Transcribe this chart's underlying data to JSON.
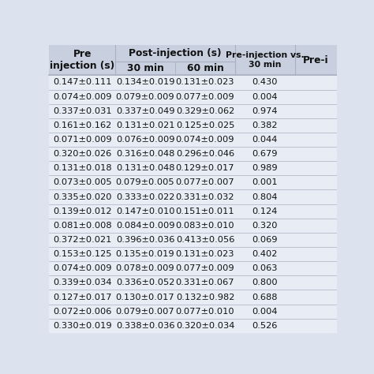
{
  "header_row1_col0": "Pre\ninjection (s)",
  "header_post": "Post-injection (s)",
  "header_30": "30 min",
  "header_60": "60 min",
  "header_pre_vs": "Pre-injection vs.\n30 min",
  "header_pre_i": "Pre-i",
  "col0": [
    "0.147±0.111",
    "0.074±0.009",
    "0.337±0.031",
    "0.161±0.162",
    "0.071±0.009",
    "0.320±0.026",
    "0.131±0.018",
    "0.073±0.005",
    "0.335±0.020",
    "0.139±0.012",
    "0.081±0.008",
    "0.372±0.021",
    "0.153±0.125",
    "0.074±0.009",
    "0.339±0.034",
    "0.127±0.017",
    "0.072±0.006",
    "0.330±0.019"
  ],
  "col1": [
    "0.134±0.019",
    "0.079±0.009",
    "0.337±0.049",
    "0.131±0.021",
    "0.076±0.009",
    "0.316±0.048",
    "0.131±0.048",
    "0.079±0.005",
    "0.333±0.022",
    "0.147±0.010",
    "0.084±0.009",
    "0.396±0.036",
    "0.135±0.019",
    "0.078±0.009",
    "0.336±0.052",
    "0.130±0.017",
    "0.079±0.007",
    "0.338±0.036"
  ],
  "col2": [
    "0.131±0.023",
    "0.077±0.009",
    "0.329±0.062",
    "0.125±0.025",
    "0.074±0.009",
    "0.296±0.046",
    "0.129±0.017",
    "0.077±0.007",
    "0.331±0.032",
    "0.151±0.011",
    "0.083±0.010",
    "0.413±0.056",
    "0.131±0.023",
    "0.077±0.009",
    "0.331±0.067",
    "0.132±0.982",
    "0.077±0.010",
    "0.320±0.034"
  ],
  "col3": [
    "0.430",
    "0.004",
    "0.974",
    "0.382",
    "0.044",
    "0.679",
    "0.989",
    "0.001",
    "0.804",
    "0.124",
    "0.320",
    "0.069",
    "0.402",
    "0.063",
    "0.800",
    "0.688",
    "0.004",
    "0.526"
  ],
  "page_bg": "#dce3ef",
  "header_bg": "#c8d0e0",
  "data_bg": "#e8ecf4",
  "separator_color": "#aab0c0",
  "text_color": "#111111",
  "font_size": 8.2,
  "header_font_size": 8.8
}
